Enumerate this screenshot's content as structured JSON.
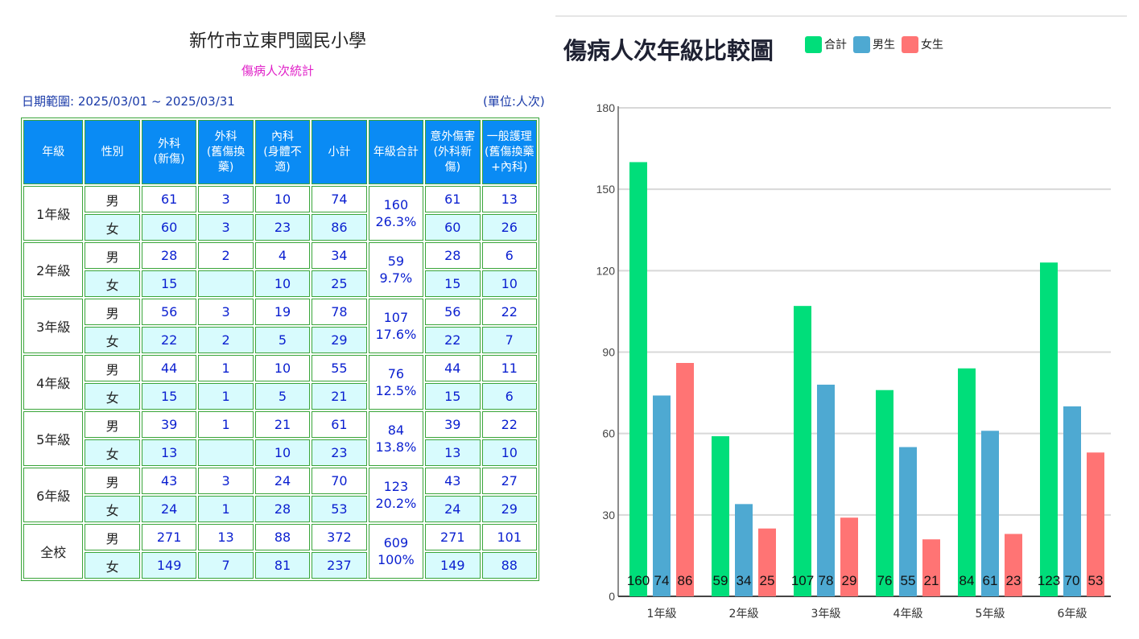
{
  "left": {
    "school": "新竹市立東門國民小學",
    "subtitle": "傷病人次統計",
    "date_range": "日期範圍: 2025/03/01 ~ 2025/03/31",
    "unit": "(單位:人次)",
    "headers": [
      "年級",
      "性別",
      "外科\n(新傷)",
      "外科\n(舊傷換藥)",
      "內科\n(身體不適)",
      "小計",
      "年級合計",
      "意外傷害\n(外科新傷)",
      "一般護理\n(舊傷換藥\n+內科)"
    ],
    "rows": [
      {
        "grade": "1年級",
        "total": "160",
        "pct": "26.3%",
        "male": {
          "sex": "男",
          "cells": [
            "61",
            "3",
            "10",
            "74"
          ],
          "extra": [
            "61",
            "13"
          ]
        },
        "female": {
          "sex": "女",
          "cells": [
            "60",
            "3",
            "23",
            "86"
          ],
          "extra": [
            "60",
            "26"
          ]
        }
      },
      {
        "grade": "2年級",
        "total": "59",
        "pct": "9.7%",
        "male": {
          "sex": "男",
          "cells": [
            "28",
            "2",
            "4",
            "34"
          ],
          "extra": [
            "28",
            "6"
          ]
        },
        "female": {
          "sex": "女",
          "cells": [
            "15",
            "",
            "10",
            "25"
          ],
          "extra": [
            "15",
            "10"
          ]
        }
      },
      {
        "grade": "3年級",
        "total": "107",
        "pct": "17.6%",
        "male": {
          "sex": "男",
          "cells": [
            "56",
            "3",
            "19",
            "78"
          ],
          "extra": [
            "56",
            "22"
          ]
        },
        "female": {
          "sex": "女",
          "cells": [
            "22",
            "2",
            "5",
            "29"
          ],
          "extra": [
            "22",
            "7"
          ]
        }
      },
      {
        "grade": "4年級",
        "total": "76",
        "pct": "12.5%",
        "male": {
          "sex": "男",
          "cells": [
            "44",
            "1",
            "10",
            "55"
          ],
          "extra": [
            "44",
            "11"
          ]
        },
        "female": {
          "sex": "女",
          "cells": [
            "15",
            "1",
            "5",
            "21"
          ],
          "extra": [
            "15",
            "6"
          ]
        }
      },
      {
        "grade": "5年級",
        "total": "84",
        "pct": "13.8%",
        "male": {
          "sex": "男",
          "cells": [
            "39",
            "1",
            "21",
            "61"
          ],
          "extra": [
            "39",
            "22"
          ]
        },
        "female": {
          "sex": "女",
          "cells": [
            "13",
            "",
            "10",
            "23"
          ],
          "extra": [
            "13",
            "10"
          ]
        }
      },
      {
        "grade": "6年級",
        "total": "123",
        "pct": "20.2%",
        "male": {
          "sex": "男",
          "cells": [
            "43",
            "3",
            "24",
            "70"
          ],
          "extra": [
            "43",
            "27"
          ]
        },
        "female": {
          "sex": "女",
          "cells": [
            "24",
            "1",
            "28",
            "53"
          ],
          "extra": [
            "24",
            "29"
          ]
        }
      },
      {
        "grade": "全校",
        "total": "609",
        "pct": "100%",
        "male": {
          "sex": "男",
          "cells": [
            "271",
            "13",
            "88",
            "372"
          ],
          "extra": [
            "271",
            "101"
          ]
        },
        "female": {
          "sex": "女",
          "cells": [
            "149",
            "7",
            "81",
            "237"
          ],
          "extra": [
            "149",
            "88"
          ]
        }
      }
    ]
  },
  "chart_data": {
    "type": "bar",
    "title": "傷病人次年級比較圖",
    "categories": [
      "1年級",
      "2年級",
      "3年級",
      "4年級",
      "5年級",
      "6年級"
    ],
    "series": [
      {
        "name": "合計",
        "color": "#00de7a",
        "values": [
          160,
          59,
          107,
          76,
          84,
          123
        ]
      },
      {
        "name": "男生",
        "color": "#4ea9d2",
        "values": [
          74,
          34,
          78,
          55,
          61,
          70
        ]
      },
      {
        "name": "女生",
        "color": "#ff7474",
        "values": [
          86,
          25,
          29,
          21,
          23,
          53
        ]
      }
    ],
    "ylim": [
      0,
      180
    ],
    "yticks": [
      0,
      30,
      60,
      90,
      120,
      150,
      180
    ],
    "grid": true,
    "legend": "top",
    "data_labels": "inside-bottom"
  }
}
